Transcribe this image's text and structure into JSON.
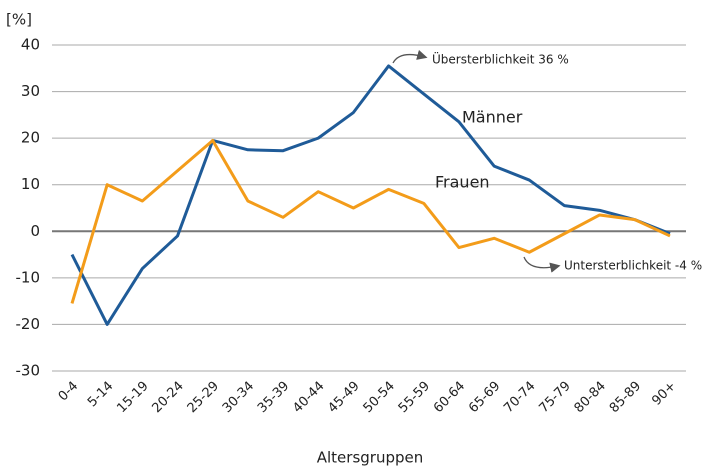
{
  "chart_data": {
    "type": "line",
    "y_unit_label": "[%]",
    "x_label": "Altersgruppen",
    "categories": [
      "0-4",
      "5-14",
      "15-19",
      "20-24",
      "25-29",
      "30-34",
      "35-39",
      "40-44",
      "45-49",
      "50-54",
      "55-59",
      "60-64",
      "65-69",
      "70-74",
      "75-79",
      "80-84",
      "85-89",
      "90+"
    ],
    "series": [
      {
        "name": "Männer",
        "color": "#1f5b98",
        "values": [
          -5,
          -20,
          -8,
          -1,
          19.5,
          17.5,
          17.3,
          20,
          25.5,
          35.5,
          29.5,
          23.5,
          14,
          11,
          5.5,
          4.5,
          2.5,
          -0.5
        ]
      },
      {
        "name": "Frauen",
        "color": "#f39c1a",
        "values": [
          -15.5,
          10,
          6.5,
          13,
          19.5,
          6.5,
          3,
          8.5,
          5,
          9,
          6,
          -3.5,
          -1.5,
          -4.5,
          -0.5,
          3.5,
          2.5,
          -1
        ]
      }
    ],
    "annotations": [
      "Übersterblichkeit 36 %",
      "Untersterblichkeit -4 %"
    ],
    "ylim": [
      -30,
      40
    ],
    "yticks": [
      -30,
      -20,
      -10,
      0,
      10,
      20,
      30,
      40
    ],
    "grid": true
  }
}
